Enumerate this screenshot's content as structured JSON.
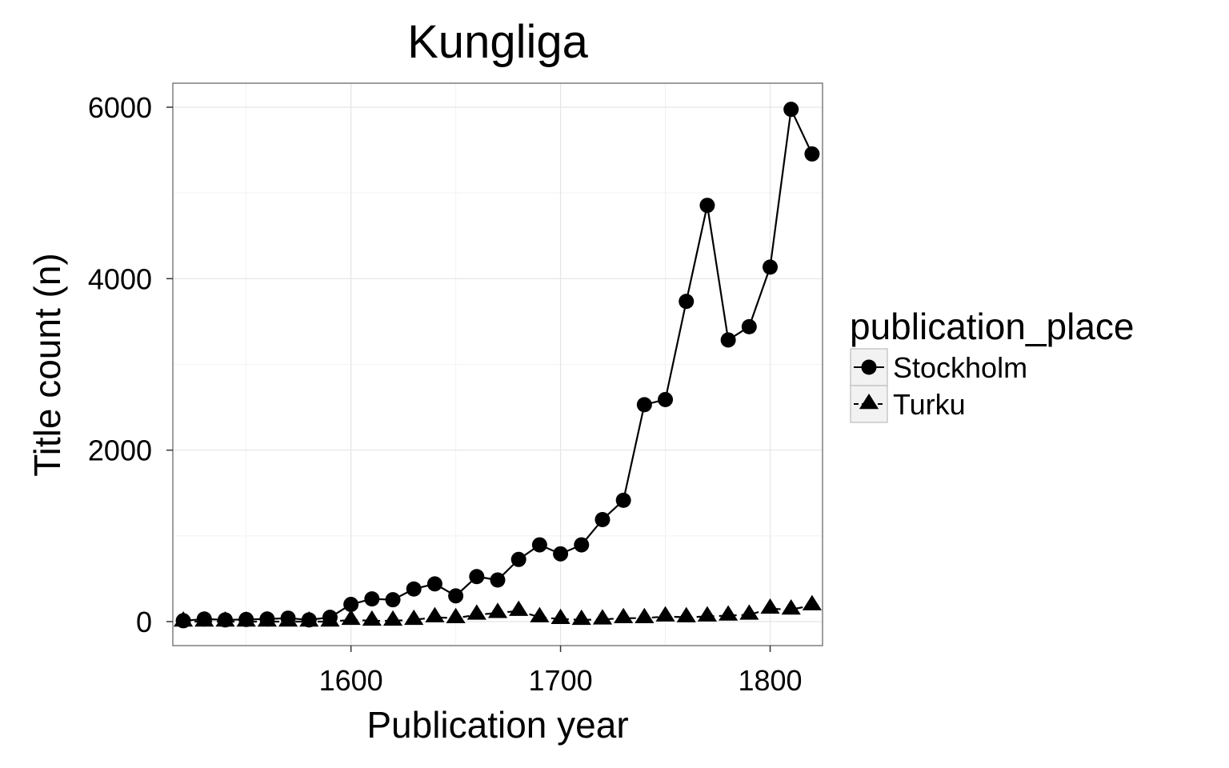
{
  "chart_data": {
    "type": "line",
    "title": "Kungliga",
    "xlabel": "Publication year",
    "ylabel": "Title count (n)",
    "xlim": [
      1515,
      1825
    ],
    "ylim": [
      -280,
      6280
    ],
    "x_ticks": [
      1600,
      1700,
      1800
    ],
    "y_ticks": [
      0,
      2000,
      4000,
      6000
    ],
    "grid": true,
    "legend": {
      "title": "publication_place",
      "position": "right"
    },
    "x": [
      1520,
      1530,
      1540,
      1550,
      1560,
      1570,
      1580,
      1590,
      1600,
      1610,
      1620,
      1630,
      1640,
      1650,
      1660,
      1670,
      1680,
      1690,
      1700,
      1710,
      1720,
      1730,
      1740,
      1750,
      1760,
      1770,
      1780,
      1790,
      1800,
      1810,
      1820
    ],
    "series": [
      {
        "name": "Stockholm",
        "marker": "circle",
        "line": "solid",
        "values": [
          10,
          30,
          20,
          25,
          30,
          40,
          20,
          50,
          200,
          265,
          255,
          380,
          440,
          300,
          525,
          485,
          725,
          895,
          790,
          895,
          1190,
          1415,
          2530,
          2590,
          3735,
          4855,
          3285,
          3440,
          4135,
          5975,
          5455
        ]
      },
      {
        "name": "Turku",
        "marker": "triangle",
        "line": "dashed",
        "values": [
          0,
          0,
          0,
          0,
          0,
          0,
          0,
          0,
          20,
          10,
          10,
          20,
          50,
          40,
          80,
          100,
          125,
          50,
          30,
          20,
          25,
          40,
          40,
          60,
          50,
          60,
          70,
          80,
          150,
          140,
          190
        ]
      }
    ]
  }
}
